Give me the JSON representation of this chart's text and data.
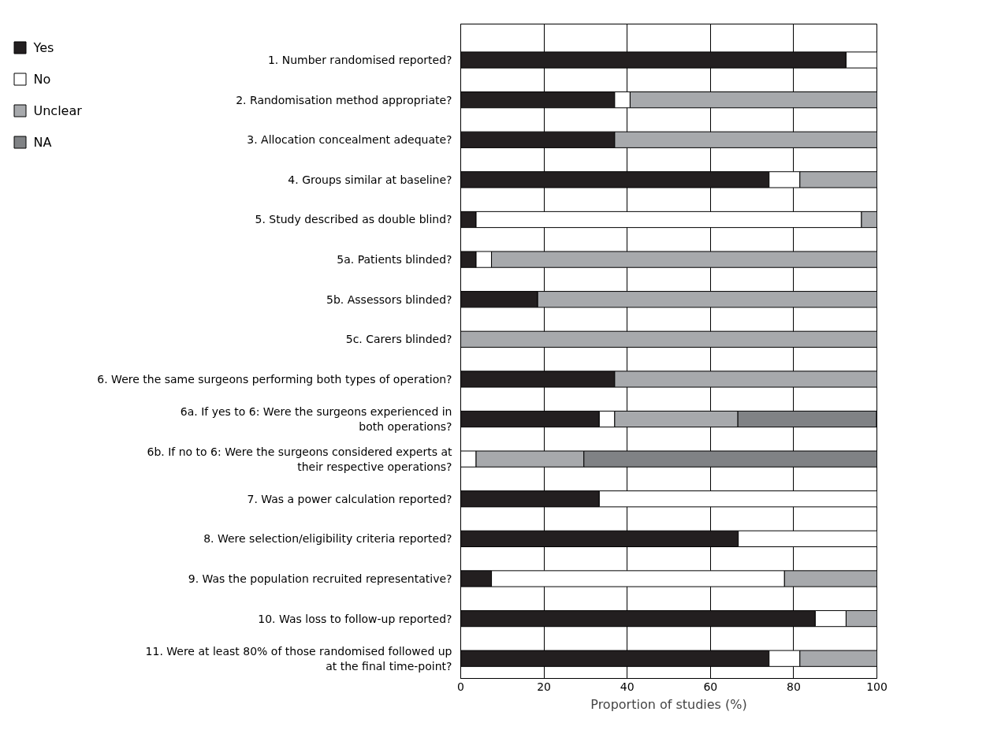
{
  "chart_data": {
    "type": "bar",
    "orientation": "horizontal",
    "stacked": true,
    "xlabel": "Proportion of studies (%)",
    "categories": [
      "1. Number randomised reported?",
      "2. Randomisation method appropriate?",
      "3. Allocation concealment adequate?",
      "4. Groups similar at baseline?",
      "5. Study described as double blind?",
      "5a. Patients blinded?",
      "5b. Assessors blinded?",
      "5c. Carers blinded?",
      "6. Were the same surgeons performing both types of operation?",
      "6a. If yes to 6: Were the surgeons experienced in\nboth operations?",
      "6b. If no to 6: Were the surgeons considered experts at\ntheir respective operations?",
      "7. Was a power calculation reported?",
      "8. Were selection/eligibility criteria reported?",
      "9. Was the population recruited representative?",
      "10. Was loss to follow-up reported?",
      "11. Were at least 80% of those randomised followed up\nat the final time-point?"
    ],
    "series": [
      {
        "name": "Yes",
        "color": "#231f20",
        "values": [
          92.6,
          37.0,
          37.0,
          74.1,
          3.7,
          3.7,
          18.5,
          0,
          37.0,
          33.3,
          0,
          33.3,
          66.7,
          7.4,
          85.2,
          74.1
        ]
      },
      {
        "name": "No",
        "color": "#ffffff",
        "values": [
          7.4,
          3.7,
          0,
          7.4,
          92.6,
          3.7,
          0,
          0,
          0,
          3.7,
          3.7,
          66.7,
          33.3,
          70.4,
          7.4,
          7.4
        ]
      },
      {
        "name": "Unclear",
        "color": "#a7a9ac",
        "values": [
          0,
          59.3,
          63.0,
          18.5,
          3.7,
          92.6,
          81.5,
          100,
          63.0,
          29.6,
          25.9,
          0,
          0,
          22.2,
          7.4,
          18.5
        ]
      },
      {
        "name": "NA",
        "color": "#808285",
        "values": [
          0,
          0,
          0,
          0,
          0,
          0,
          0,
          0,
          0,
          33.3,
          70.4,
          0,
          0,
          0,
          0,
          0
        ]
      }
    ],
    "xlim": [
      0,
      100
    ],
    "xticks": [
      0,
      20,
      40,
      60,
      80,
      100
    ],
    "grid": "x",
    "legend": "top left"
  }
}
